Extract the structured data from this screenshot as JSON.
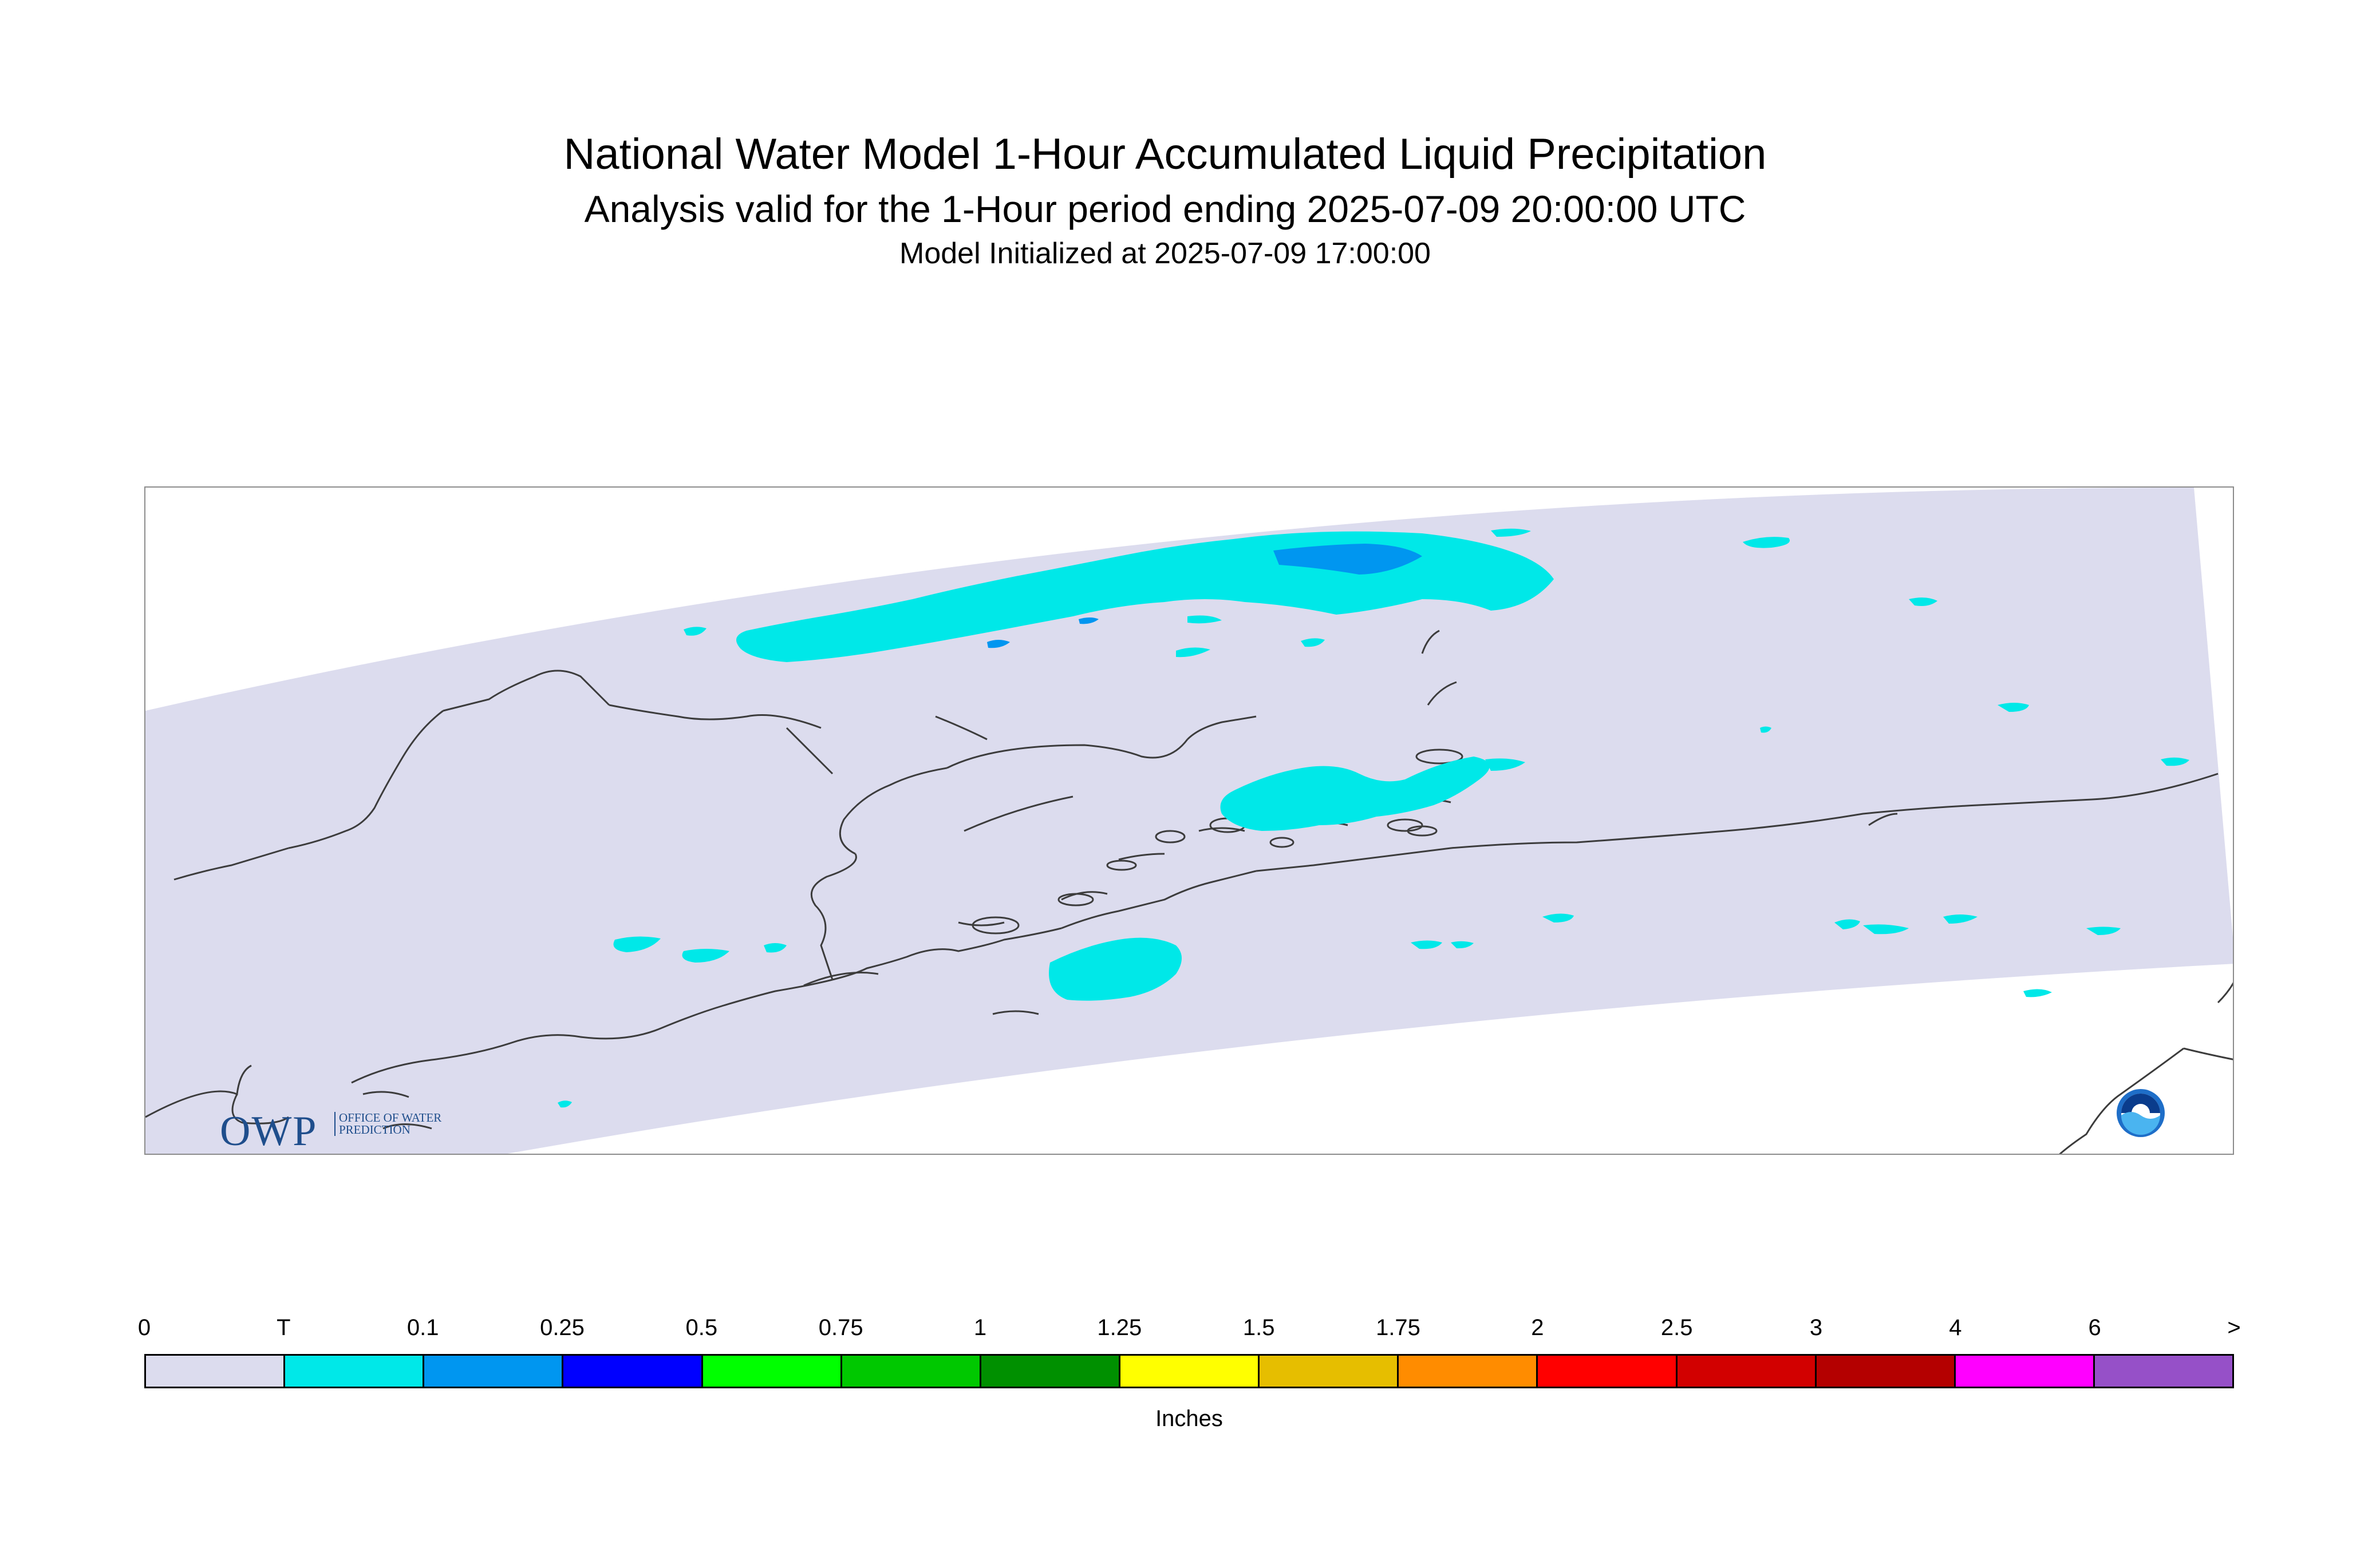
{
  "title": "National Water Model 1-Hour Accumulated Liquid Precipitation",
  "subtitle": "Analysis valid for the 1-Hour period ending 2025-07-09 20:00:00 UTC",
  "init_line": "Model Initialized at 2025-07-09 17:00:00",
  "branding": {
    "owp_logo_text": "OWP",
    "owp_tagline": "OFFICE OF WATER PREDICTION",
    "noaa_logo_text": "NOAA"
  },
  "colors": {
    "domain_fill": "#dcdcee",
    "coastline": "#3c3c3c",
    "trace": "#00e8e8",
    "p01": "#0096f0"
  },
  "legend": {
    "units_label": "Inches",
    "tick_labels": [
      "0",
      "T",
      "0.1",
      "0.25",
      "0.5",
      "0.75",
      "1",
      "1.25",
      "1.5",
      "1.75",
      "2",
      "2.5",
      "3",
      "4",
      "6",
      ">"
    ],
    "bins": [
      {
        "color": "#dcdcee"
      },
      {
        "color": "#00e8e8"
      },
      {
        "color": "#0096f0"
      },
      {
        "color": "#0000ff"
      },
      {
        "color": "#00ff00"
      },
      {
        "color": "#00c800"
      },
      {
        "color": "#009000"
      },
      {
        "color": "#ffff00"
      },
      {
        "color": "#e6be00"
      },
      {
        "color": "#ff8c00"
      },
      {
        "color": "#ff0000"
      },
      {
        "color": "#d20000"
      },
      {
        "color": "#b40000"
      },
      {
        "color": "#ff00ff"
      },
      {
        "color": "#9650c8"
      }
    ]
  }
}
